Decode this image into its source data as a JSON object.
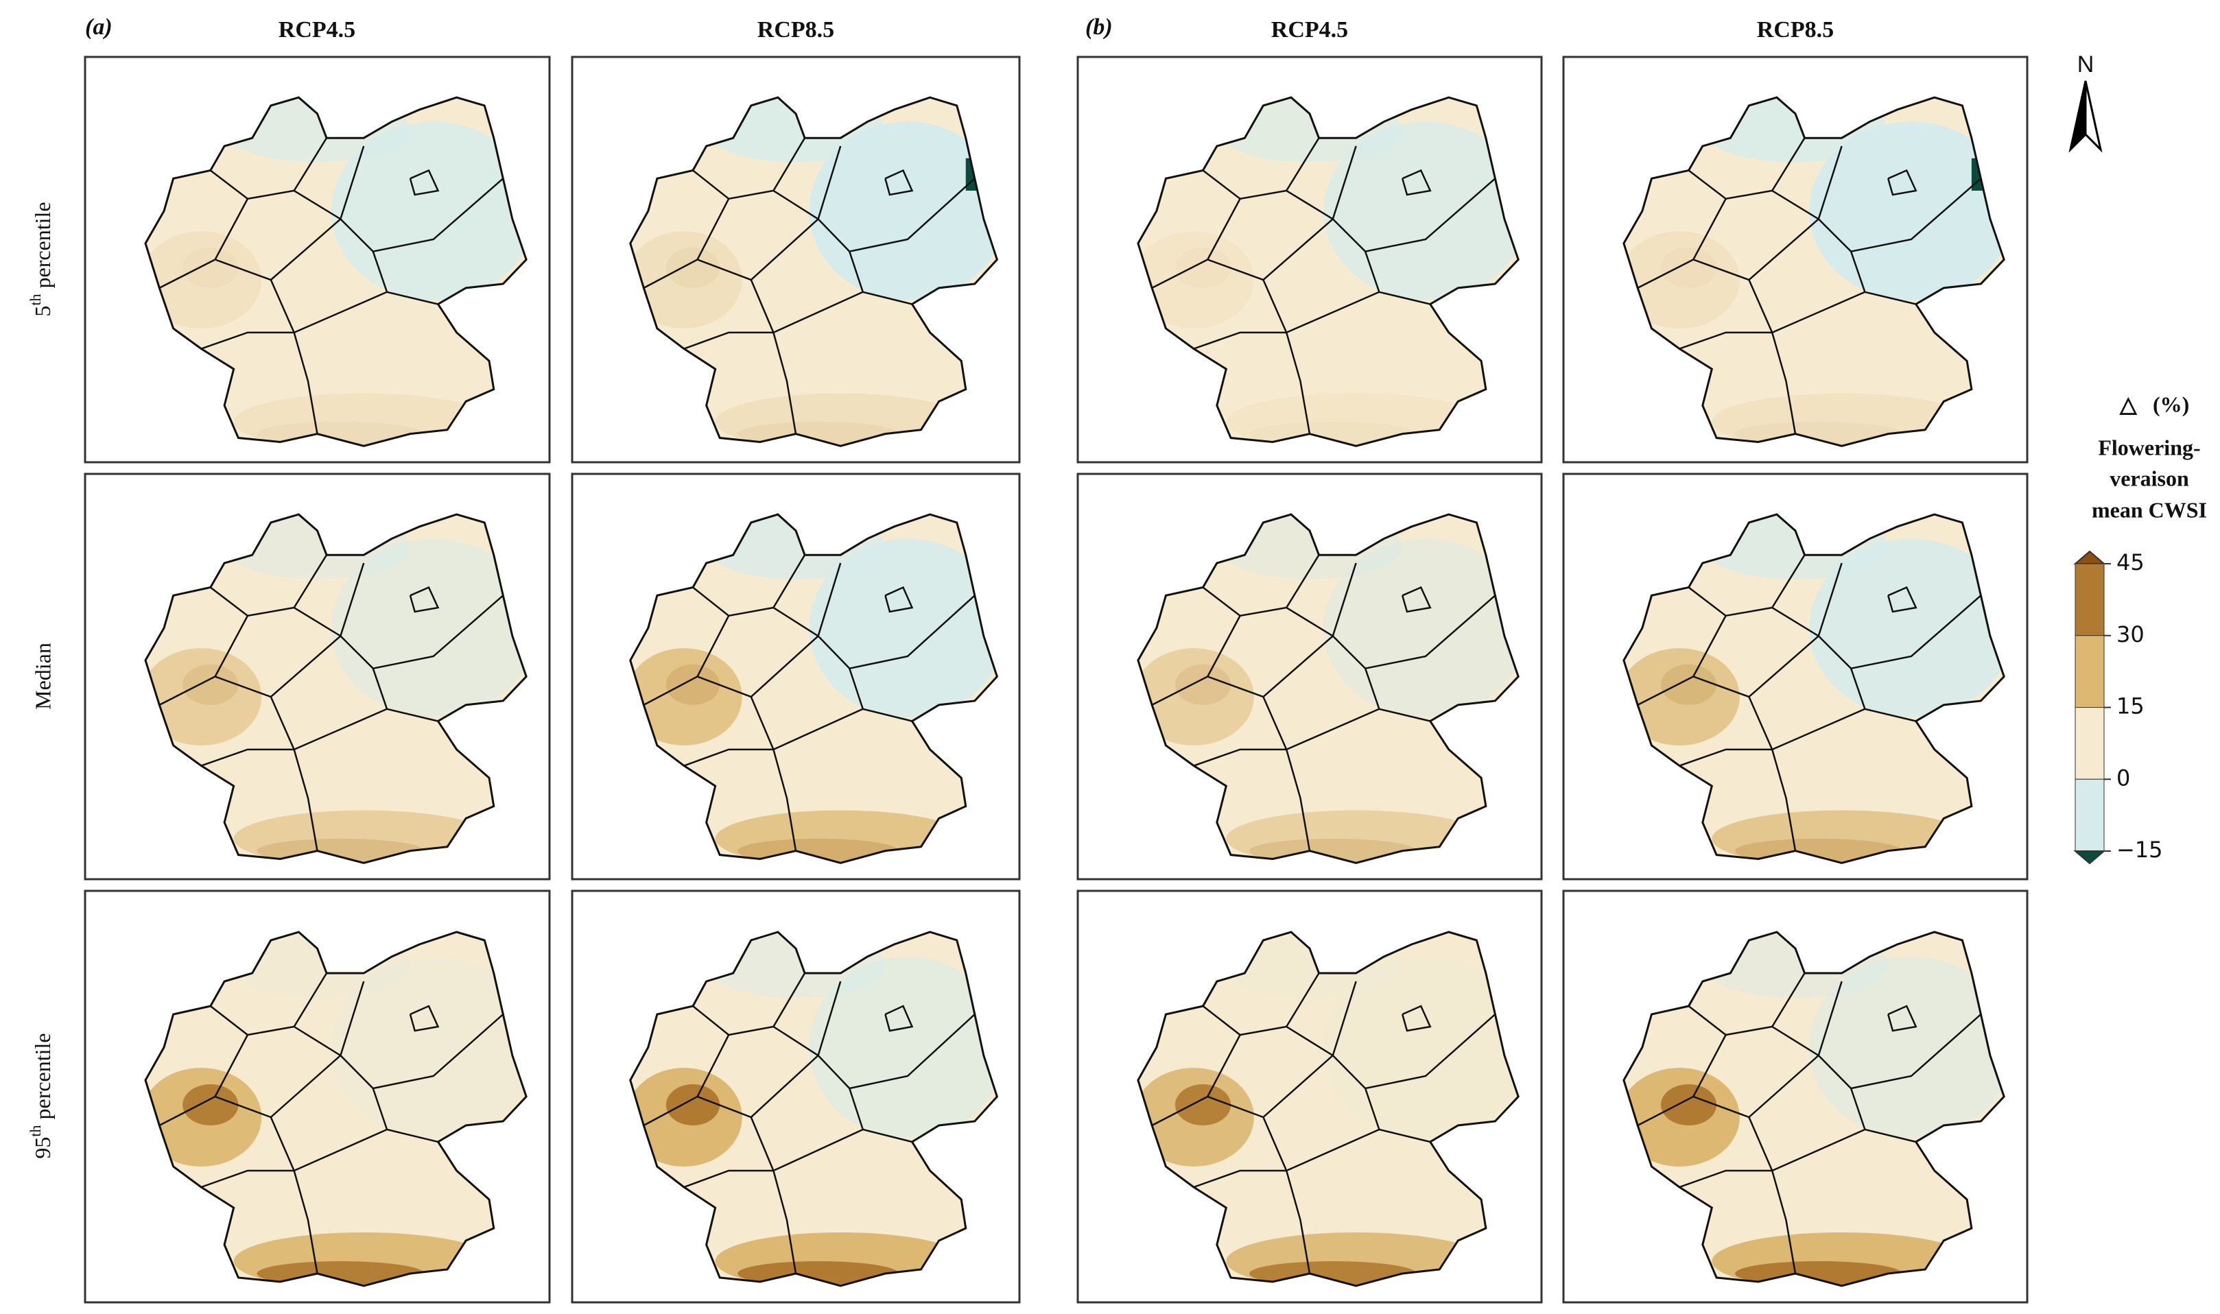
{
  "panel_groups": [
    {
      "label": "(a)",
      "columns": [
        "RCP4.5",
        "RCP8.5"
      ]
    },
    {
      "label": "(b)",
      "columns": [
        "RCP4.5",
        "RCP8.5"
      ]
    }
  ],
  "rows": [
    {
      "number": "5",
      "suffix": "th",
      "text": "percentile"
    },
    {
      "text": "Median"
    },
    {
      "number": "95",
      "suffix": "th",
      "text": "percentile"
    }
  ],
  "north": "N",
  "legend": {
    "symbol": "△",
    "unit": "(%)",
    "title": [
      "Flowering-",
      "veraison",
      "mean CWSI"
    ],
    "ticks": [
      45,
      30,
      15,
      0,
      {
        "value": -15,
        "label": "−15"
      }
    ],
    "colors": [
      "#8c5110",
      "#b07a32",
      "#dcb872",
      "#f6ead0",
      "#d6ecec",
      "#0b4b3e"
    ]
  }
}
